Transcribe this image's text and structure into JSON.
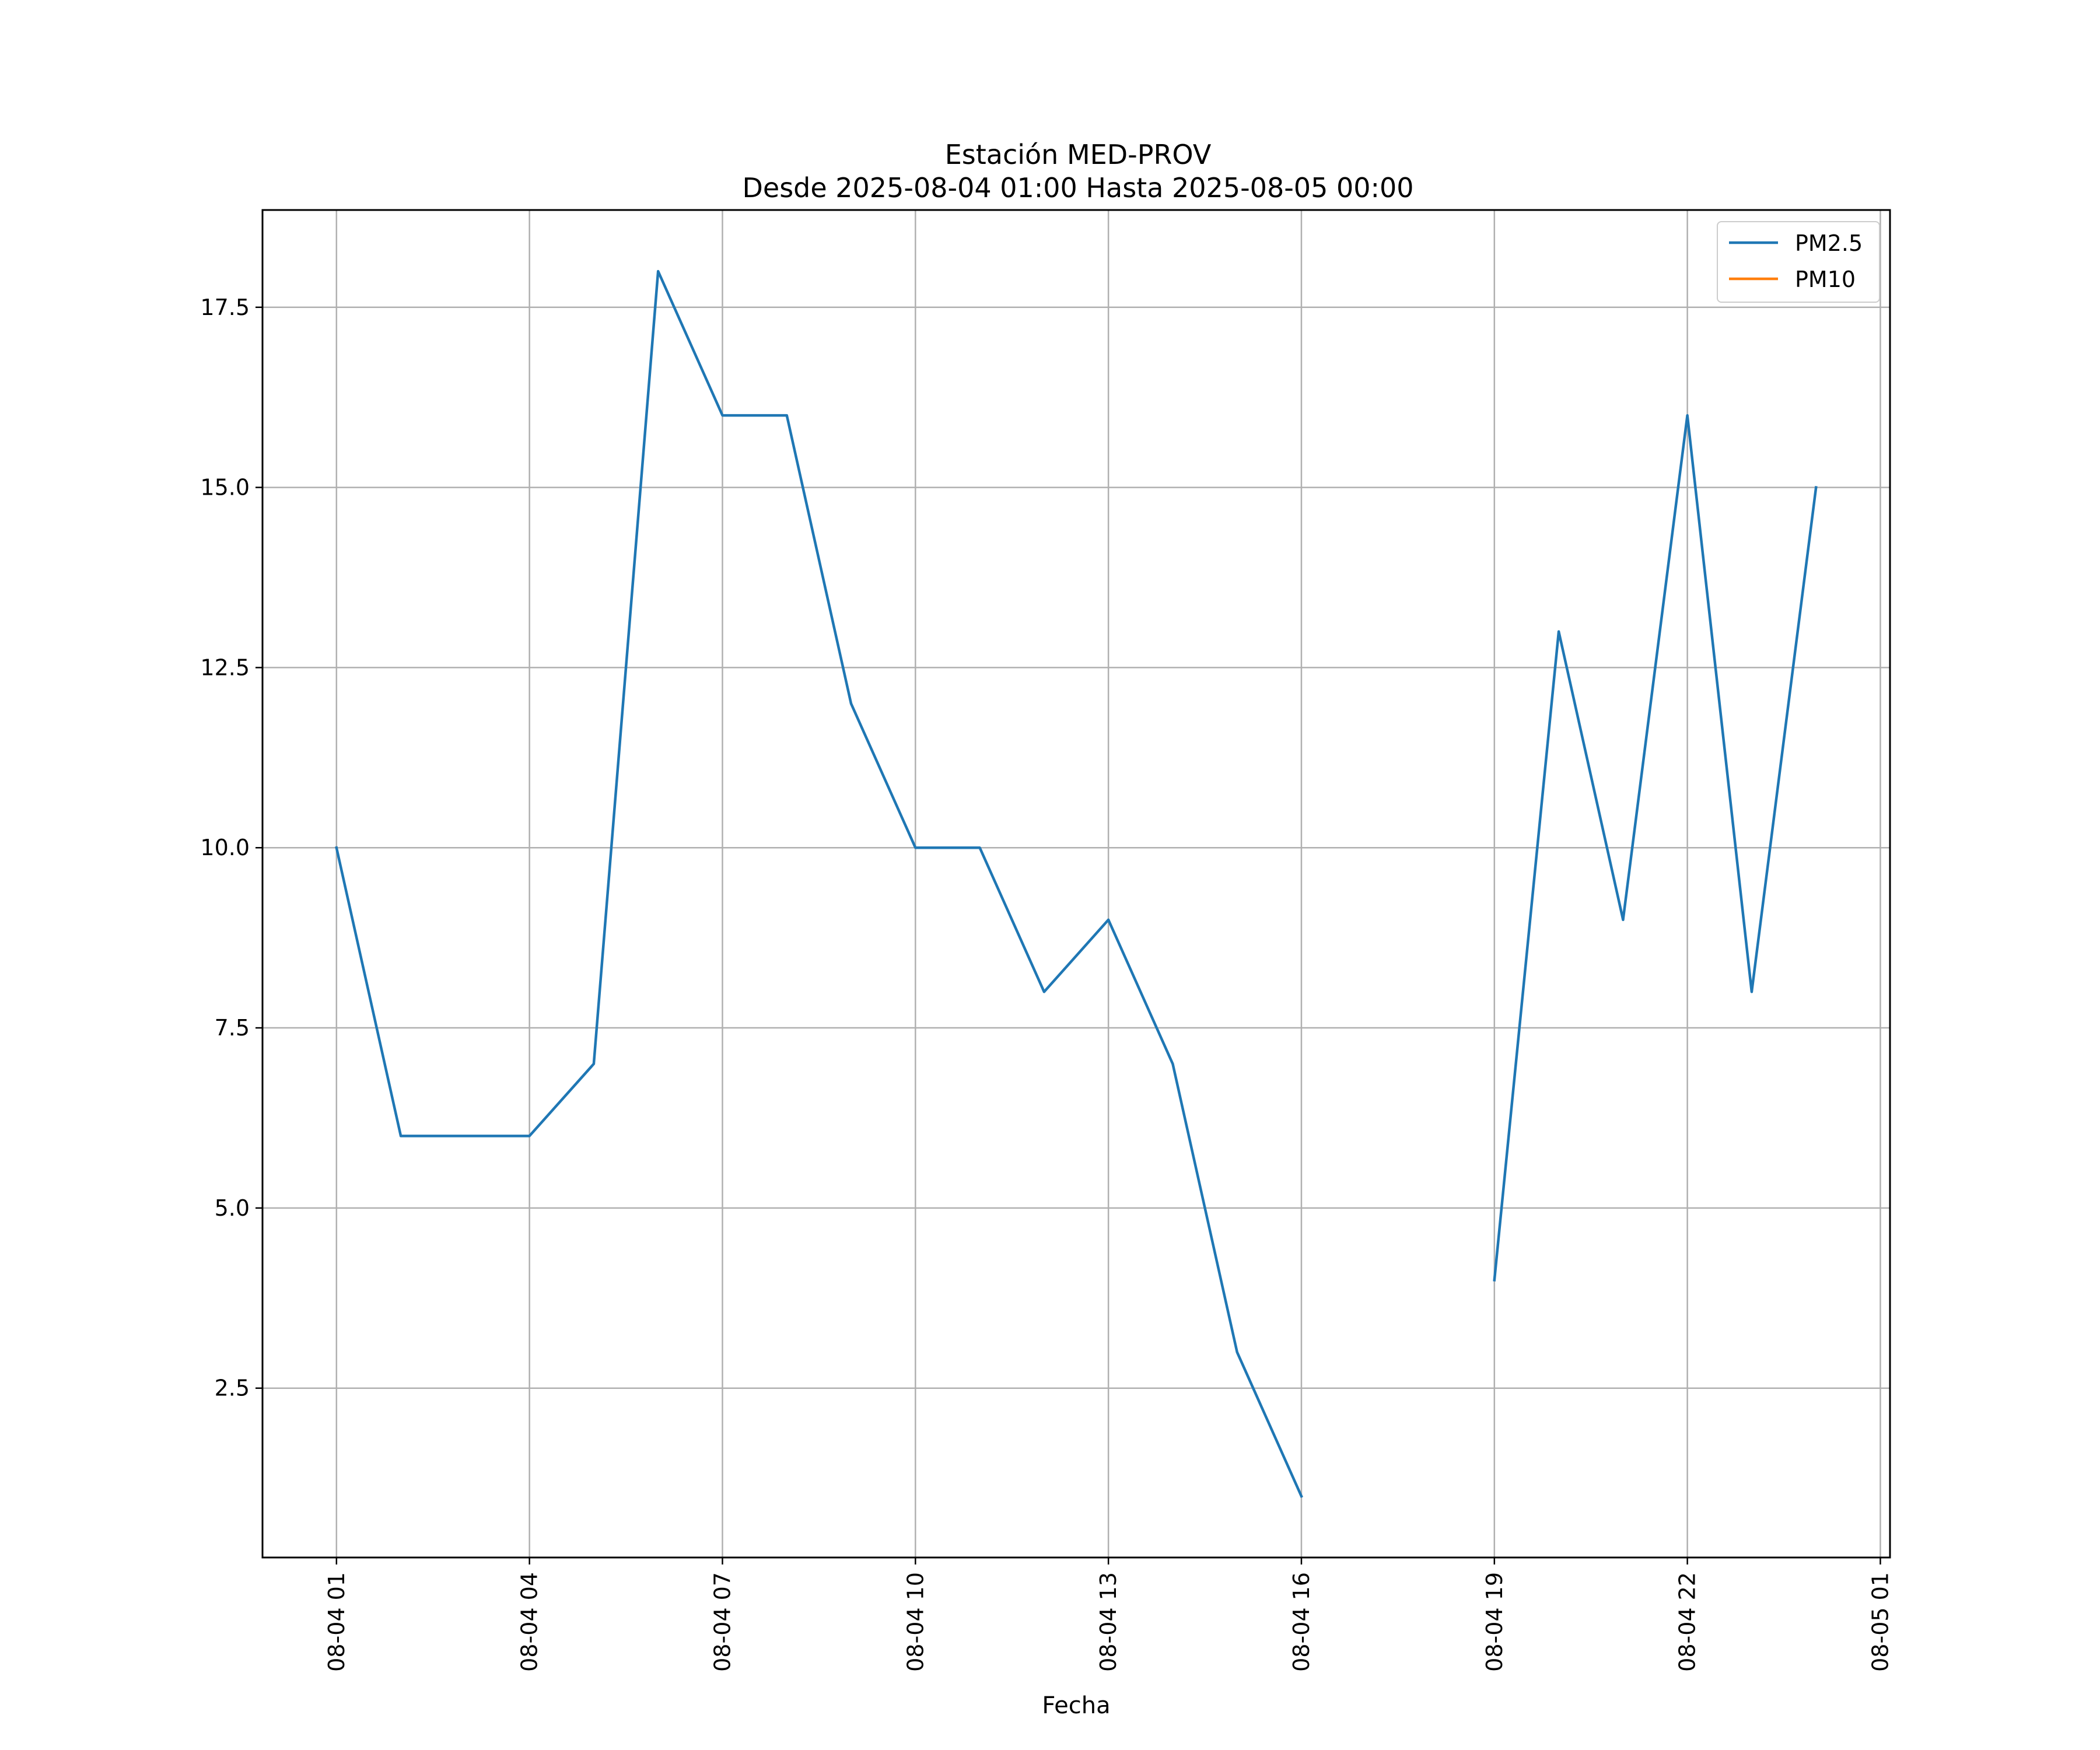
{
  "chart_data": {
    "type": "line",
    "title_lines": [
      "Estación MED-PROV",
      "Desde 2025-08-04 01:00 Hasta 2025-08-05 00:00"
    ],
    "xlabel": "Fecha",
    "ylabel": "",
    "grid": true,
    "legend_position": "top-right",
    "x_tick_labels": [
      "08-04 01",
      "08-04 04",
      "08-04 07",
      "08-04 10",
      "08-04 13",
      "08-04 16",
      "08-04 19",
      "08-04 22",
      "08-05 01"
    ],
    "x_tick_times": [
      "2025-08-04 01:00",
      "2025-08-04 04:00",
      "2025-08-04 07:00",
      "2025-08-04 10:00",
      "2025-08-04 13:00",
      "2025-08-04 16:00",
      "2025-08-04 19:00",
      "2025-08-04 22:00",
      "2025-08-05 01:00"
    ],
    "y_ticks": [
      2.5,
      5.0,
      7.5,
      10.0,
      12.5,
      15.0,
      17.5
    ],
    "y_tick_labels": [
      "2.5",
      "5.0",
      "7.5",
      "10.0",
      "12.5",
      "15.0",
      "17.5"
    ],
    "xlim": [
      "2025-08-03 23:51",
      "2025-08-05 01:09"
    ],
    "ylim": [
      0.15,
      18.85
    ],
    "x": [
      "2025-08-04 01:00",
      "2025-08-04 02:00",
      "2025-08-04 03:00",
      "2025-08-04 04:00",
      "2025-08-04 05:00",
      "2025-08-04 06:00",
      "2025-08-04 07:00",
      "2025-08-04 08:00",
      "2025-08-04 09:00",
      "2025-08-04 10:00",
      "2025-08-04 11:00",
      "2025-08-04 12:00",
      "2025-08-04 13:00",
      "2025-08-04 14:00",
      "2025-08-04 15:00",
      "2025-08-04 16:00",
      "2025-08-04 17:00",
      "2025-08-04 18:00",
      "2025-08-04 19:00",
      "2025-08-04 20:00",
      "2025-08-04 21:00",
      "2025-08-04 22:00",
      "2025-08-04 23:00",
      "2025-08-05 00:00"
    ],
    "series": [
      {
        "name": "PM2.5",
        "color": "#1f77b4",
        "values": [
          10,
          6,
          6,
          6,
          7,
          18,
          16,
          16,
          12,
          10,
          10,
          8,
          9,
          7,
          3,
          1,
          null,
          null,
          4,
          13,
          9,
          16,
          8,
          15
        ]
      },
      {
        "name": "PM10",
        "color": "#ff7f0e",
        "values": [
          null,
          null,
          null,
          null,
          null,
          null,
          null,
          null,
          null,
          null,
          null,
          null,
          null,
          null,
          null,
          null,
          null,
          null,
          null,
          null,
          null,
          null,
          null,
          null
        ]
      }
    ]
  }
}
